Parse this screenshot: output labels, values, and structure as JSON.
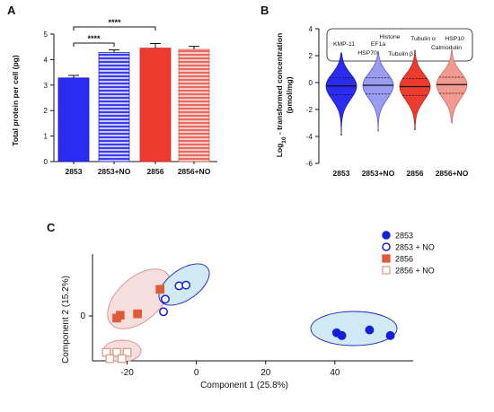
{
  "panel_labels": [
    "A",
    "B",
    "C"
  ],
  "colors": {
    "blue": "#2b2bf2",
    "blue_light": "#9a9cf2",
    "red": "#ee3b30",
    "red_light": "#f29a90",
    "pca_blue": "#1420d8",
    "pca_red": "#e05a35",
    "pca_red_light": "#d99f8a",
    "ellipse_blue": "#cfe9f5",
    "ellipse_red": "#f6dede"
  },
  "chart_data": [
    {
      "type": "bar",
      "panel": "A",
      "ylabel": "Total protein per cell (pg)",
      "ylim": [
        0,
        5
      ],
      "yticks": [
        "0",
        "1",
        "2",
        "3",
        "4",
        "5"
      ],
      "categories": [
        "2853",
        "2853+NO",
        "2856",
        "2856+NO"
      ],
      "values": [
        3.28,
        4.28,
        4.45,
        4.4
      ],
      "errors": [
        0.1,
        0.1,
        0.18,
        0.12
      ],
      "styles": [
        "solid-blue",
        "striped-blue",
        "solid-red",
        "striped-red"
      ],
      "significance": [
        {
          "from": "2853",
          "to": "2853+NO",
          "label": "****"
        },
        {
          "from": "2853",
          "to": "2856",
          "label": "****"
        }
      ]
    },
    {
      "type": "violin",
      "panel": "B",
      "ylabel_line1": "Log",
      "ylabel_sub": "10",
      "ylabel_line1_rest": " - transformed concentration",
      "ylabel_line2": "(pmol/mg)",
      "ylim": [
        -6,
        4
      ],
      "yticks": [
        "-6",
        "-4",
        "-2",
        "0",
        "2",
        "4"
      ],
      "categories": [
        "2853",
        "2853+NO",
        "2856",
        "2856+NO"
      ],
      "medians": [
        -0.25,
        -0.2,
        -0.3,
        -0.15
      ],
      "q1": [
        -0.9,
        -0.85,
        -0.95,
        -0.8
      ],
      "q3": [
        0.35,
        0.35,
        0.3,
        0.4
      ],
      "min": [
        -3.9,
        -3.6,
        -3.5,
        -3.0
      ],
      "max": [
        2.2,
        2.3,
        2.4,
        2.4
      ],
      "annotations": [
        "KMP-11",
        "HSP70",
        "Histone",
        "EF1a",
        "Tubulin β",
        "Tubulin α",
        "HSP10",
        "Calmodulin"
      ]
    },
    {
      "type": "scatter",
      "panel": "C",
      "xlabel": "Component 1 (25.8%)",
      "ylabel": "Component 2 (15.2%)",
      "xticks": [
        "-20",
        "0",
        "20",
        "40"
      ],
      "yticks": [
        "0"
      ],
      "xlim": [
        -30,
        60
      ],
      "series": [
        {
          "name": "2853",
          "marker": "filled-circle",
          "points": [
            [
              40.5,
              -2.4
            ],
            [
              42,
              -2.8
            ],
            [
              50,
              -2.0
            ],
            [
              56,
              -2.8
            ]
          ]
        },
        {
          "name": "2853 + NO",
          "marker": "open-circle",
          "points": [
            [
              -9,
              2.4
            ],
            [
              -5,
              4.3
            ],
            [
              -3,
              4.4
            ],
            [
              -9.5,
              0.6
            ]
          ]
        },
        {
          "name": "2856",
          "marker": "filled-square",
          "points": [
            [
              -23,
              -0.3
            ],
            [
              -22,
              0.1
            ],
            [
              -17,
              0.3
            ],
            [
              -10.5,
              3.8
            ]
          ]
        },
        {
          "name": "2856 + NO",
          "marker": "open-square",
          "points": [
            [
              -26,
              -5.2
            ],
            [
              -23,
              -5.2
            ],
            [
              -20,
              -5.2
            ],
            [
              -25,
              -6.1
            ],
            [
              -21.5,
              -6.1
            ]
          ]
        }
      ]
    }
  ],
  "violin_annotation_lines": {
    "row1": [
      "Histone",
      "Tubulin α",
      "HSP10"
    ],
    "row2": [
      "KMP-11",
      "EF1a",
      "Calmodulin"
    ],
    "row3": [
      "HSP70",
      "Tubulin β"
    ]
  }
}
